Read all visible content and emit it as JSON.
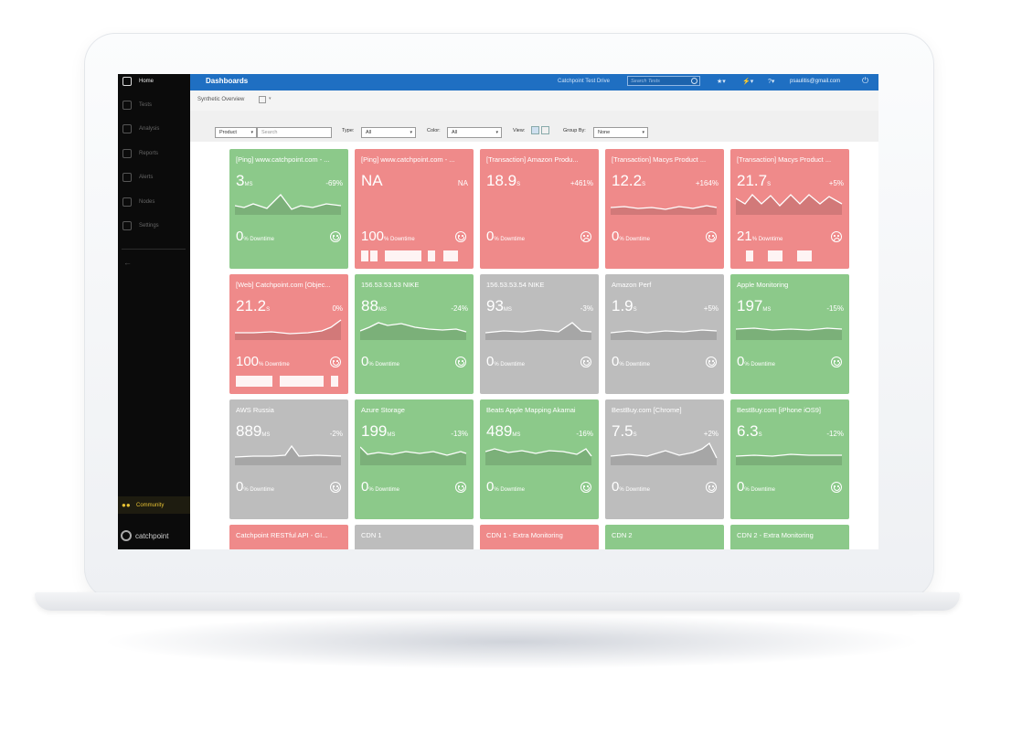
{
  "app": {
    "header_title": "Dashboards",
    "test_drive": "Catchpoint Test Drive",
    "search_placeholder": "Search Tests",
    "user_email": "psaulitis@gmail.com"
  },
  "sidebar": {
    "items": [
      {
        "label": "Home",
        "icon": "home-icon",
        "active": true
      },
      {
        "label": "Tests",
        "icon": "tests-icon"
      },
      {
        "label": "Analysis",
        "icon": "analysis-icon"
      },
      {
        "label": "Reports",
        "icon": "reports-icon"
      },
      {
        "label": "Alerts",
        "icon": "alerts-icon"
      },
      {
        "label": "Nodes",
        "icon": "nodes-icon"
      },
      {
        "label": "Settings",
        "icon": "settings-icon"
      }
    ],
    "community": "Community",
    "brand": "catchpoint"
  },
  "subheader": {
    "view_name": "Synthetic Overview"
  },
  "filters": {
    "product_label": "Product",
    "search_placeholder": "Search",
    "type_label": "Type:",
    "type_value": "All",
    "color_label": "Color:",
    "color_value": "All",
    "view_label": "View:",
    "group_label": "Group By:",
    "group_value": "None"
  },
  "colors": {
    "green": "#8cc98a",
    "red": "#ef8a8a",
    "gray": "#bdbdbd",
    "accent": "#1f6fc2"
  },
  "cards": [
    {
      "title": "[Ping] www.catchpoint.com - ...",
      "value": "3",
      "unit": "MS",
      "change": "-69%",
      "downtime": "0",
      "downtime_label": "% Downtime",
      "status": "green",
      "mood": "happy"
    },
    {
      "title": "[Ping] www.catchpoint.com - ...",
      "value": "NA",
      "unit": "",
      "change": "NA",
      "downtime": "100",
      "downtime_label": "% Downtime",
      "status": "red",
      "mood": "happy"
    },
    {
      "title": "[Transaction] Amazon Produ...",
      "value": "18.9",
      "unit": "S",
      "change": "+461%",
      "downtime": "0",
      "downtime_label": "% Downtime",
      "status": "red",
      "mood": "sad"
    },
    {
      "title": "[Transaction] Macys Product ...",
      "value": "12.2",
      "unit": "S",
      "change": "+164%",
      "downtime": "0",
      "downtime_label": "% Downtime",
      "status": "red",
      "mood": "happy"
    },
    {
      "title": "[Transaction] Macys Product ...",
      "value": "21.7",
      "unit": "S",
      "change": "+5%",
      "downtime": "21",
      "downtime_label": "% Downtime",
      "status": "red",
      "mood": "sad"
    },
    {
      "title": "[Web] Catchpoint.com [Objec...",
      "value": "21.2",
      "unit": "S",
      "change": "0%",
      "downtime": "100",
      "downtime_label": "% Downtime",
      "status": "red",
      "mood": "happy"
    },
    {
      "title": "156.53.53.53 NIKE",
      "value": "88",
      "unit": "MS",
      "change": "-24%",
      "downtime": "0",
      "downtime_label": "% Downtime",
      "status": "green",
      "mood": "happy"
    },
    {
      "title": "156.53.53.54 NIKE",
      "value": "93",
      "unit": "MS",
      "change": "-3%",
      "downtime": "0",
      "downtime_label": "% Downtime",
      "status": "gray",
      "mood": "happy"
    },
    {
      "title": "Amazon Perf",
      "value": "1.9",
      "unit": "S",
      "change": "+5%",
      "downtime": "0",
      "downtime_label": "% Downtime",
      "status": "gray",
      "mood": "happy"
    },
    {
      "title": "Apple Monitoring",
      "value": "197",
      "unit": "MS",
      "change": "-15%",
      "downtime": "0",
      "downtime_label": "% Downtime",
      "status": "green",
      "mood": "happy"
    },
    {
      "title": "AWS Russia",
      "value": "889",
      "unit": "MS",
      "change": "-2%",
      "downtime": "0",
      "downtime_label": "% Downtime",
      "status": "gray",
      "mood": "happy"
    },
    {
      "title": "Azure Storage",
      "value": "199",
      "unit": "MS",
      "change": "-13%",
      "downtime": "0",
      "downtime_label": "% Downtime",
      "status": "green",
      "mood": "happy"
    },
    {
      "title": "Beats Apple Mapping Akamai",
      "value": "489",
      "unit": "MS",
      "change": "-16%",
      "downtime": "0",
      "downtime_label": "% Downtime",
      "status": "green",
      "mood": "happy"
    },
    {
      "title": "BestBuy.com [Chrome]",
      "value": "7.5",
      "unit": "S",
      "change": "+2%",
      "downtime": "0",
      "downtime_label": "% Downtime",
      "status": "gray",
      "mood": "happy"
    },
    {
      "title": "BestBuy.com [iPhone iOS9]",
      "value": "6.3",
      "unit": "S",
      "change": "-12%",
      "downtime": "0",
      "downtime_label": "% Downtime",
      "status": "green",
      "mood": "happy"
    },
    {
      "title": "Catchpoint RESTful API - GI...",
      "status": "red"
    },
    {
      "title": "CDN 1",
      "status": "gray"
    },
    {
      "title": "CDN 1 - Extra Monitoring",
      "status": "red"
    },
    {
      "title": "CDN 2",
      "status": "green"
    },
    {
      "title": "CDN 2 - Extra Monitoring",
      "status": "green"
    }
  ]
}
